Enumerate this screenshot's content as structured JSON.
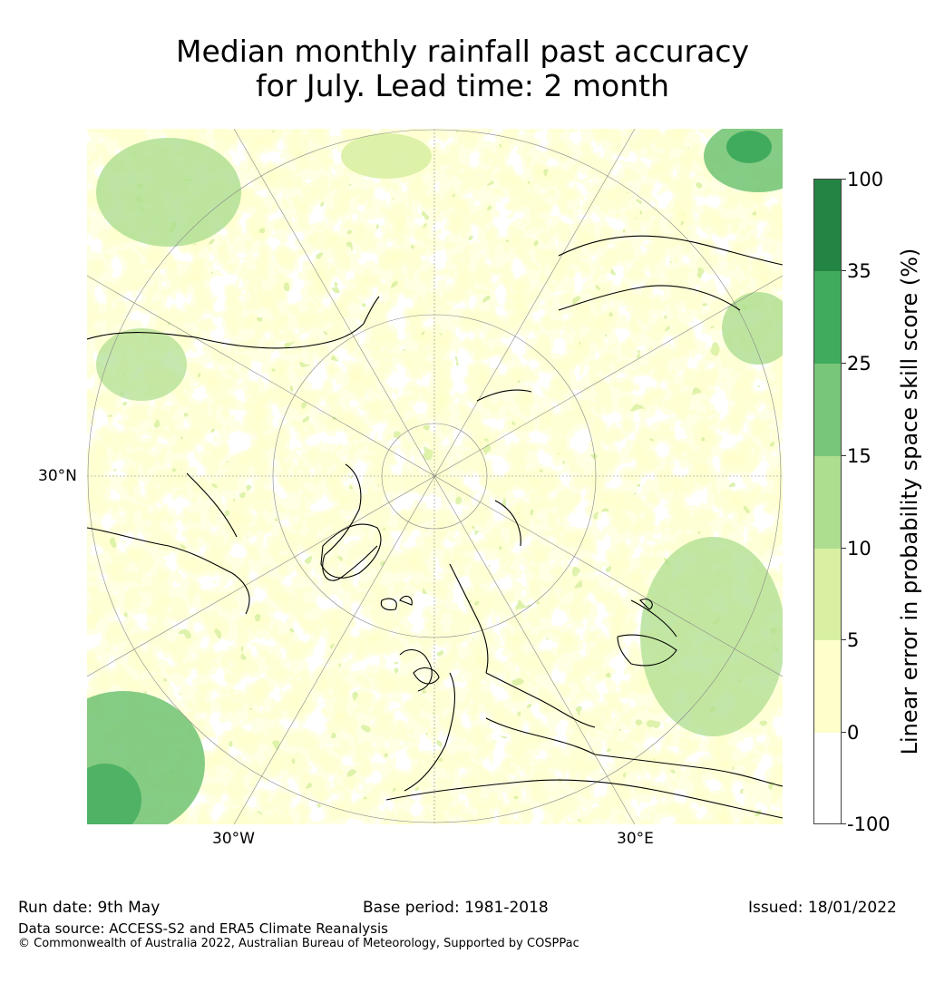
{
  "title_line1": "Median monthly rainfall past accuracy",
  "title_line2": "for July. Lead time: 2 month",
  "map": {
    "lat_label": "30°N",
    "lon_label_west": "30°W",
    "lon_label_east": "30°E"
  },
  "colorbar": {
    "label": "Linear error in probability space skill score (%)",
    "ticks": [
      "100",
      "35",
      "25",
      "15",
      "10",
      "5",
      "0",
      "-100"
    ],
    "levels": [
      {
        "range": "35 to 100",
        "color": "#238443"
      },
      {
        "range": "25 to 35",
        "color": "#41ab5d"
      },
      {
        "range": "15 to 25",
        "color": "#78c679"
      },
      {
        "range": "10 to 15",
        "color": "#addd8e"
      },
      {
        "range": "5 to 10",
        "color": "#d9f0a3"
      },
      {
        "range": "0 to 5",
        "color": "#ffffcc"
      },
      {
        "range": "-100 to 0",
        "color": "#ffffff"
      }
    ]
  },
  "footer": {
    "run_date": "Run date: 9th May",
    "base_period": "Base period: 1981-2018",
    "issued": "Issued: 18/01/2022",
    "data_source": "Data source: ACCESS-S2 and ERA5 Climate Reanalysis",
    "copyright": "© Commonwealth of Australia 2022, Australian Bureau of Meteorology, Supported by COSPPac"
  }
}
